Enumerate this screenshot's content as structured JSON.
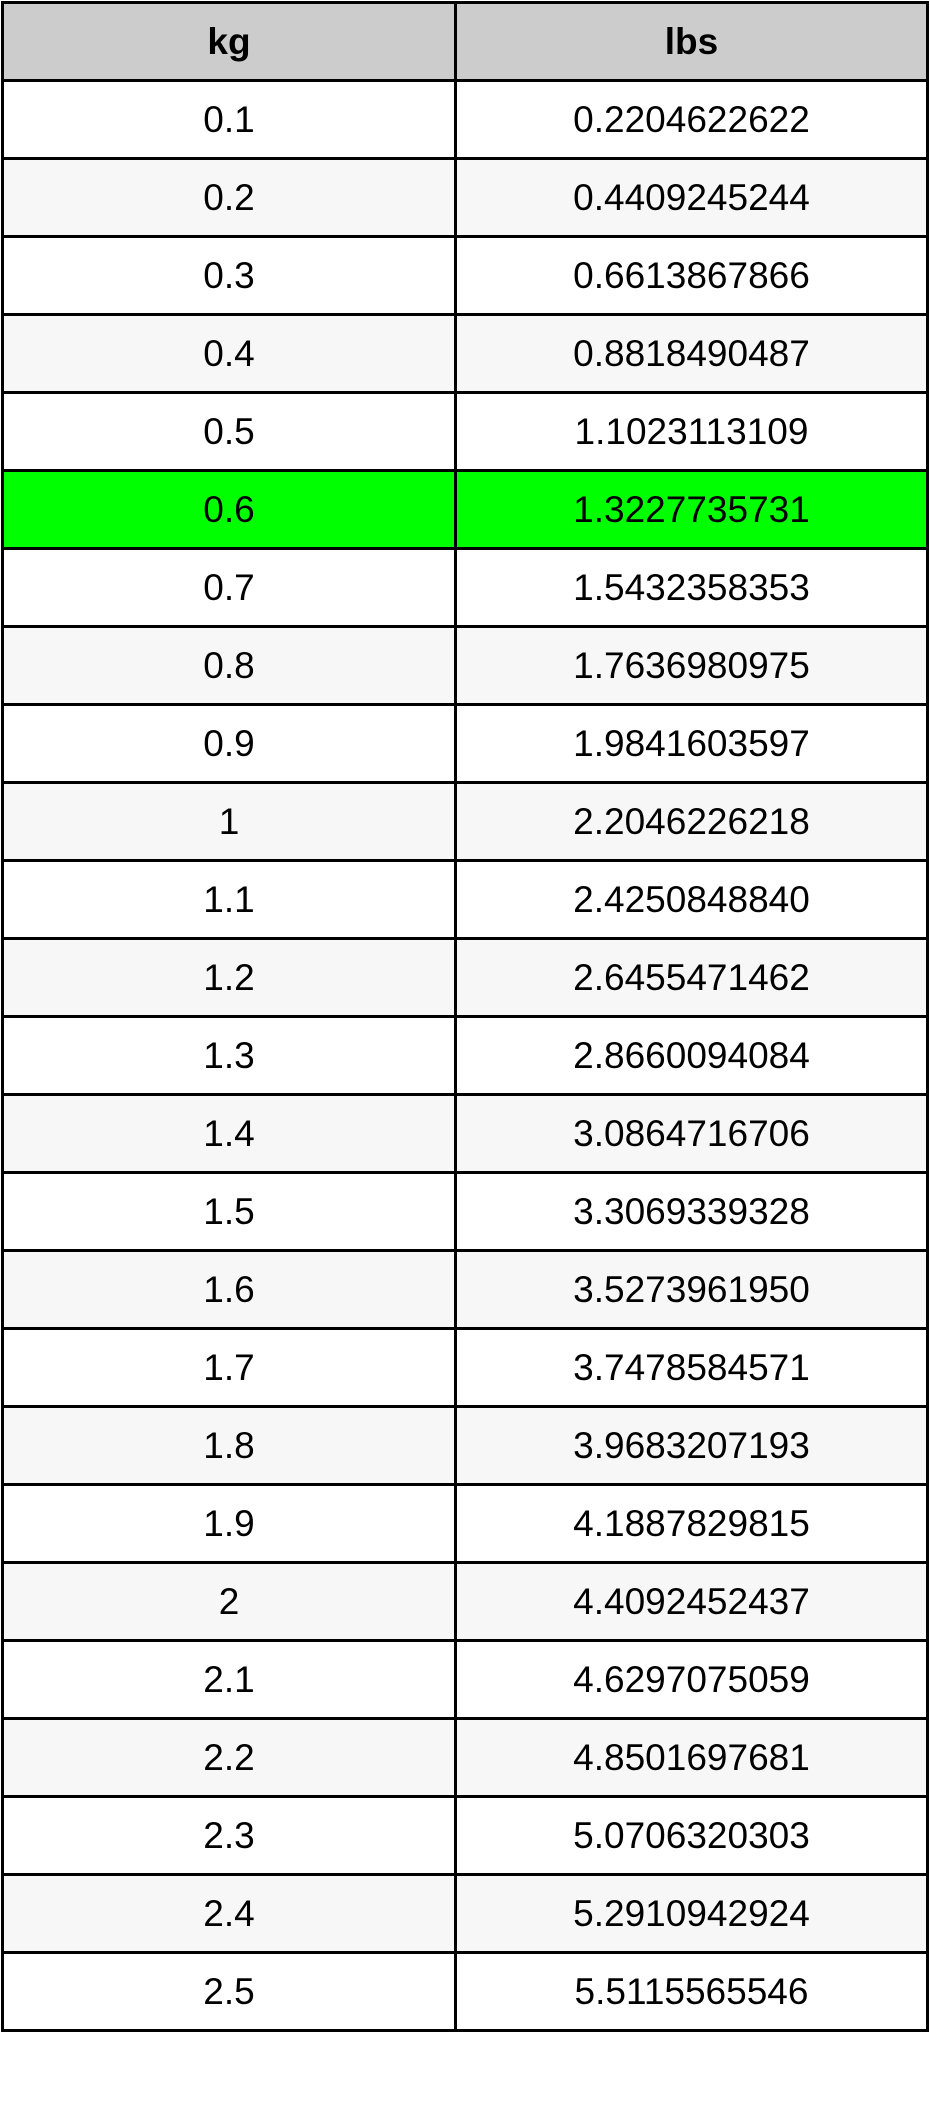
{
  "header": {
    "kg": "kg",
    "lbs": "lbs"
  },
  "highlight_color": "#00ff00",
  "highlighted_row": 5,
  "rows": [
    {
      "kg": "0.1",
      "lbs": "0.2204622622"
    },
    {
      "kg": "0.2",
      "lbs": "0.4409245244"
    },
    {
      "kg": "0.3",
      "lbs": "0.6613867866"
    },
    {
      "kg": "0.4",
      "lbs": "0.8818490487"
    },
    {
      "kg": "0.5",
      "lbs": "1.1023113109"
    },
    {
      "kg": "0.6",
      "lbs": "1.3227735731"
    },
    {
      "kg": "0.7",
      "lbs": "1.5432358353"
    },
    {
      "kg": "0.8",
      "lbs": "1.7636980975"
    },
    {
      "kg": "0.9",
      "lbs": "1.9841603597"
    },
    {
      "kg": "1",
      "lbs": "2.2046226218"
    },
    {
      "kg": "1.1",
      "lbs": "2.4250848840"
    },
    {
      "kg": "1.2",
      "lbs": "2.6455471462"
    },
    {
      "kg": "1.3",
      "lbs": "2.8660094084"
    },
    {
      "kg": "1.4",
      "lbs": "3.0864716706"
    },
    {
      "kg": "1.5",
      "lbs": "3.3069339328"
    },
    {
      "kg": "1.6",
      "lbs": "3.5273961950"
    },
    {
      "kg": "1.7",
      "lbs": "3.7478584571"
    },
    {
      "kg": "1.8",
      "lbs": "3.9683207193"
    },
    {
      "kg": "1.9",
      "lbs": "4.1887829815"
    },
    {
      "kg": "2",
      "lbs": "4.4092452437"
    },
    {
      "kg": "2.1",
      "lbs": "4.6297075059"
    },
    {
      "kg": "2.2",
      "lbs": "4.8501697681"
    },
    {
      "kg": "2.3",
      "lbs": "5.0706320303"
    },
    {
      "kg": "2.4",
      "lbs": "5.2910942924"
    },
    {
      "kg": "2.5",
      "lbs": "5.5115565546"
    }
  ]
}
